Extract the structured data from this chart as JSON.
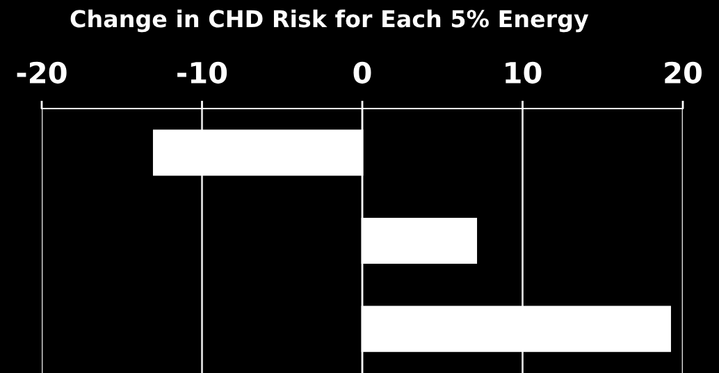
{
  "chart_data": {
    "type": "bar",
    "orientation": "horizontal",
    "title": "Change in CHD Risk for Each 5% Energy",
    "categories": [
      null,
      null,
      null
    ],
    "values": [
      -13.0,
      7.1,
      19.2
    ],
    "color": "#ffffff",
    "xlim": [
      -20,
      20
    ],
    "xticks": [
      -20,
      -10,
      0,
      10,
      20
    ],
    "grid": "x",
    "legend": false
  }
}
